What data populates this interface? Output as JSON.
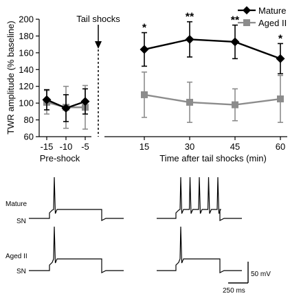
{
  "chart_data": {
    "type": "line",
    "ylabel": "TWR amplitude (% baseline)",
    "ylim": [
      60,
      200
    ],
    "yticks": [
      60,
      80,
      100,
      120,
      140,
      160,
      180,
      200
    ],
    "grid": false,
    "legend_position": "top-right",
    "xticks_pre": [
      -15,
      -10,
      -5
    ],
    "xticks_post": [
      15,
      30,
      45,
      60
    ],
    "xlabel_pre": "Pre-shock",
    "xlabel_post": "Time after tail shocks (min)",
    "event_label": "Tail shocks",
    "series": [
      {
        "name": "Mature",
        "color": "#000000",
        "marker": "diamond",
        "pre": {
          "x": [
            -15,
            -10,
            -5
          ],
          "y": [
            104,
            94,
            102
          ],
          "err": [
            12,
            16,
            15
          ]
        },
        "post": {
          "x": [
            15,
            30,
            45,
            60
          ],
          "y": [
            164,
            176,
            173,
            153
          ],
          "err": [
            20,
            21,
            20,
            18
          ]
        }
      },
      {
        "name": "Aged II",
        "color": "#8c8c8c",
        "marker": "square",
        "pre": {
          "x": [
            -15,
            -10,
            -5
          ],
          "y": [
            101,
            95,
            95
          ],
          "err": [
            14,
            25,
            26
          ]
        },
        "post": {
          "x": [
            15,
            30,
            45,
            60
          ],
          "y": [
            110,
            101,
            98,
            105
          ],
          "err": [
            27,
            24,
            19,
            28
          ]
        }
      }
    ],
    "significance": [
      {
        "x": 15,
        "label": "*"
      },
      {
        "x": 30,
        "label": "**"
      },
      {
        "x": 45,
        "label": "**"
      },
      {
        "x": 60,
        "label": "*"
      }
    ]
  },
  "traces": {
    "rows": [
      {
        "label": "Mature",
        "label2": "SN",
        "left_spikes": 1,
        "right_spikes": 5
      },
      {
        "label": "Aged II",
        "label2": "SN",
        "left_spikes": 1,
        "right_spikes": 1
      }
    ],
    "scale_mv": "50 mV",
    "scale_ms": "250 ms"
  }
}
